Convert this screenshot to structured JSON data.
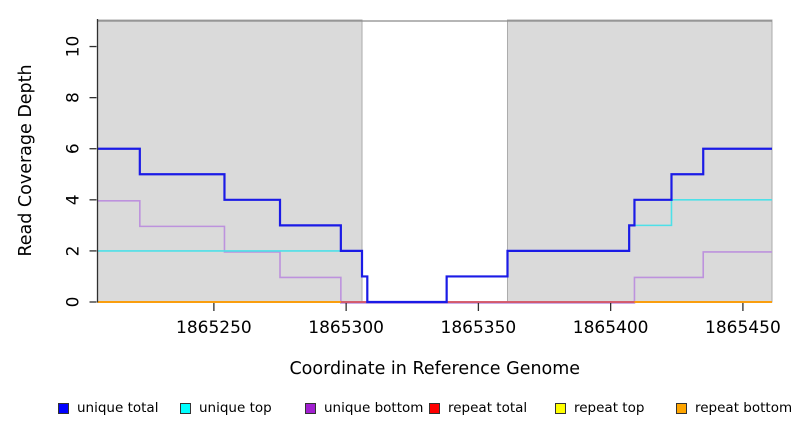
{
  "chart_data": {
    "type": "line",
    "subtype": "step-coverage",
    "title": "",
    "xlabel": "Coordinate in Reference Genome",
    "ylabel": "Read Coverage Depth",
    "xlim": [
      1865206,
      1865461
    ],
    "ylim": [
      0,
      11
    ],
    "xticks": [
      "1865250",
      "1865300",
      "1865350",
      "1865400",
      "1865450"
    ],
    "xtick_values": [
      1865250,
      1865300,
      1865350,
      1865400,
      1865450
    ],
    "yticks": [
      "0",
      "2",
      "4",
      "6",
      "8",
      "10"
    ],
    "ytick_values": [
      0,
      2,
      4,
      6,
      8,
      10
    ],
    "grid": false,
    "legend_position": "bottom",
    "background_shading": {
      "meaning": "repeat regions",
      "fill": "#dadada",
      "stroke": "#ababab",
      "regions": [
        [
          1865206,
          1865306
        ],
        [
          1865361,
          1865461
        ]
      ]
    },
    "top_boundary_line": {
      "y": 11,
      "color": "#8a8a8a"
    },
    "series": [
      {
        "name": "unique total",
        "color": "#0000ff",
        "line_color": "#1b1be6",
        "step_x": [
          1865206,
          1865222,
          1865254,
          1865275,
          1865298,
          1865306,
          1865308,
          1865338,
          1865361,
          1865407,
          1865409,
          1865423,
          1865435,
          1865461
        ],
        "step_y": [
          6,
          5,
          4,
          3,
          2,
          1,
          0,
          1,
          2,
          3,
          4,
          5,
          6
        ]
      },
      {
        "name": "unique top",
        "color": "#00ffff",
        "line_color": "#4de0e8",
        "step_x": [
          1865206,
          1865306,
          1865308,
          1865338,
          1865361,
          1865407,
          1865423,
          1865461
        ],
        "step_y": [
          2,
          1,
          0,
          1,
          2,
          3,
          4
        ]
      },
      {
        "name": "unique bottom",
        "color": "#a21fd1",
        "line_color": "#bd92dd",
        "step_x": [
          1865206,
          1865222,
          1865254,
          1865275,
          1865298,
          1865409,
          1865435,
          1865461
        ],
        "step_y": [
          4,
          3,
          2,
          1,
          0,
          1,
          2
        ]
      },
      {
        "name": "repeat total",
        "color": "#ff0000",
        "line_color": "#d14a6e",
        "step_x": [
          1865206,
          1865461
        ],
        "step_y": [
          0
        ]
      },
      {
        "name": "repeat top",
        "color": "#ffff00",
        "line_color": "#ffff00",
        "step_x": [
          1865206,
          1865461
        ],
        "step_y": [
          0
        ]
      },
      {
        "name": "repeat bottom",
        "color": "#ffa500",
        "line_color": "#ffa500",
        "step_x": [
          1865206,
          1865461
        ],
        "step_y": [
          0
        ],
        "visible_segments": [
          [
            1865206,
            1865298
          ],
          [
            1865409,
            1865461
          ]
        ]
      }
    ]
  },
  "legend": {
    "items": [
      {
        "label": "unique total",
        "color": "#0000ff"
      },
      {
        "label": "unique top",
        "color": "#00ffff"
      },
      {
        "label": "unique bottom",
        "color": "#a21fd1"
      },
      {
        "label": "repeat total",
        "color": "#ff0000"
      },
      {
        "label": "repeat top",
        "color": "#ffff00"
      },
      {
        "label": "repeat bottom",
        "color": "#ffa500"
      }
    ]
  }
}
